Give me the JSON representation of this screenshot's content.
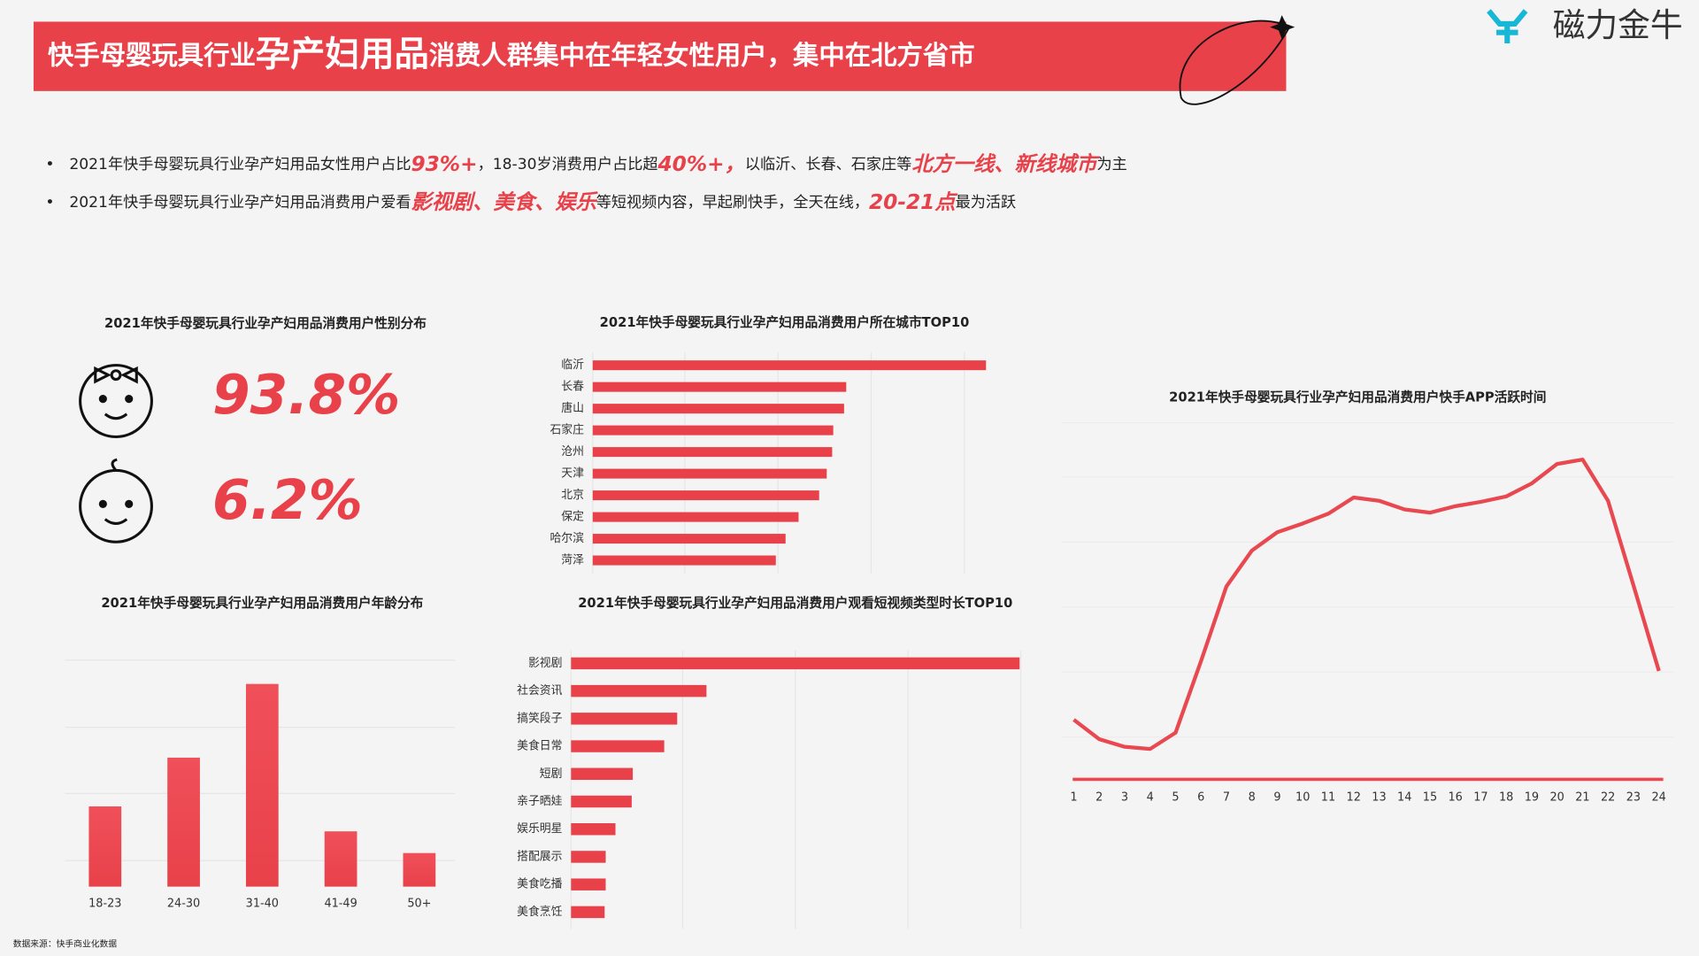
{
  "header": {
    "title_parts": [
      "快手母婴玩具行业",
      "孕产妇用品",
      "消费人群集中在年轻女性用户，集中在北方省市"
    ],
    "logo": "磁力金牛"
  },
  "bullets": [
    [
      "2021年快手母婴玩具行业孕产妇用品女性用户占比",
      "93%+",
      "，18-30岁消费用户占比超",
      "40%+，",
      "以临沂、长春、石家庄等",
      "北方一线、新线城市",
      "为主"
    ],
    [
      "2021年快手母婴玩具行业孕产妇用品消费用户爱看",
      "影视剧、美食、娱乐",
      "等短视频内容，早起刷快手，全天在线，",
      "20-21点",
      "最为活跃"
    ]
  ],
  "gender": {
    "title": "2021年快手母婴玩具行业孕产妇用品消费用户性别分布",
    "values": [
      93.8,
      6.2
    ],
    "value_labels": [
      "93.8%",
      "6.2%"
    ]
  },
  "source": "数据来源：快手商业化数据",
  "chart_data": [
    {
      "type": "hbar",
      "title": "2021年快手母婴玩具行业孕产妇用品消费用户所在城市TOP10",
      "categories": [
        "临沂",
        "长春",
        "唐山",
        "石家庄",
        "沧州",
        "天津",
        "北京",
        "保定",
        "哈尔滨",
        "菏泽"
      ],
      "values": [
        363,
        234,
        232,
        222,
        221,
        216,
        209,
        190,
        178,
        169
      ],
      "color": "#e8414a"
    },
    {
      "type": "bar",
      "title": "2021年快手母婴玩具行业孕产妇用品消费用户年龄分布",
      "categories": [
        "18-23",
        "24-30",
        "31-40",
        "41-49",
        "50+"
      ],
      "values": [
        74,
        119,
        187,
        51,
        31
      ],
      "color": "#e8414a"
    },
    {
      "type": "hbar",
      "title": "2021年快手母婴玩具行业孕产妇用品消费用户观看短视频类型时长TOP10",
      "categories": [
        "影视剧",
        "社会资讯",
        "搞笑段子",
        "美食日常",
        "短剧",
        "亲子晒娃",
        "娱乐明星",
        "搭配展示",
        "美食吃播",
        "美食烹饪"
      ],
      "values": [
        414,
        125,
        98,
        86,
        57,
        56,
        41,
        32,
        32,
        31
      ],
      "color": "#e8414a"
    },
    {
      "type": "line",
      "title": "2021年快手母婴玩具行业孕产妇用品消费用户快手APP活跃时间",
      "x": [
        1,
        2,
        3,
        4,
        5,
        6,
        7,
        8,
        9,
        10,
        11,
        12,
        13,
        14,
        15,
        16,
        17,
        18,
        19,
        20,
        21,
        22,
        23,
        24
      ],
      "values": [
        55,
        37,
        30,
        28,
        43,
        109,
        178,
        211,
        228,
        236,
        245,
        260,
        257,
        249,
        246,
        252,
        256,
        261,
        273,
        291,
        295,
        257,
        179,
        100
      ],
      "xlim": [
        1,
        24
      ],
      "xticks": [
        1,
        2,
        3,
        4,
        5,
        6,
        7,
        8,
        9,
        10,
        11,
        12,
        13,
        14,
        15,
        16,
        17,
        18,
        19,
        20,
        21,
        22,
        23,
        24
      ],
      "color": "#e8484f"
    }
  ]
}
